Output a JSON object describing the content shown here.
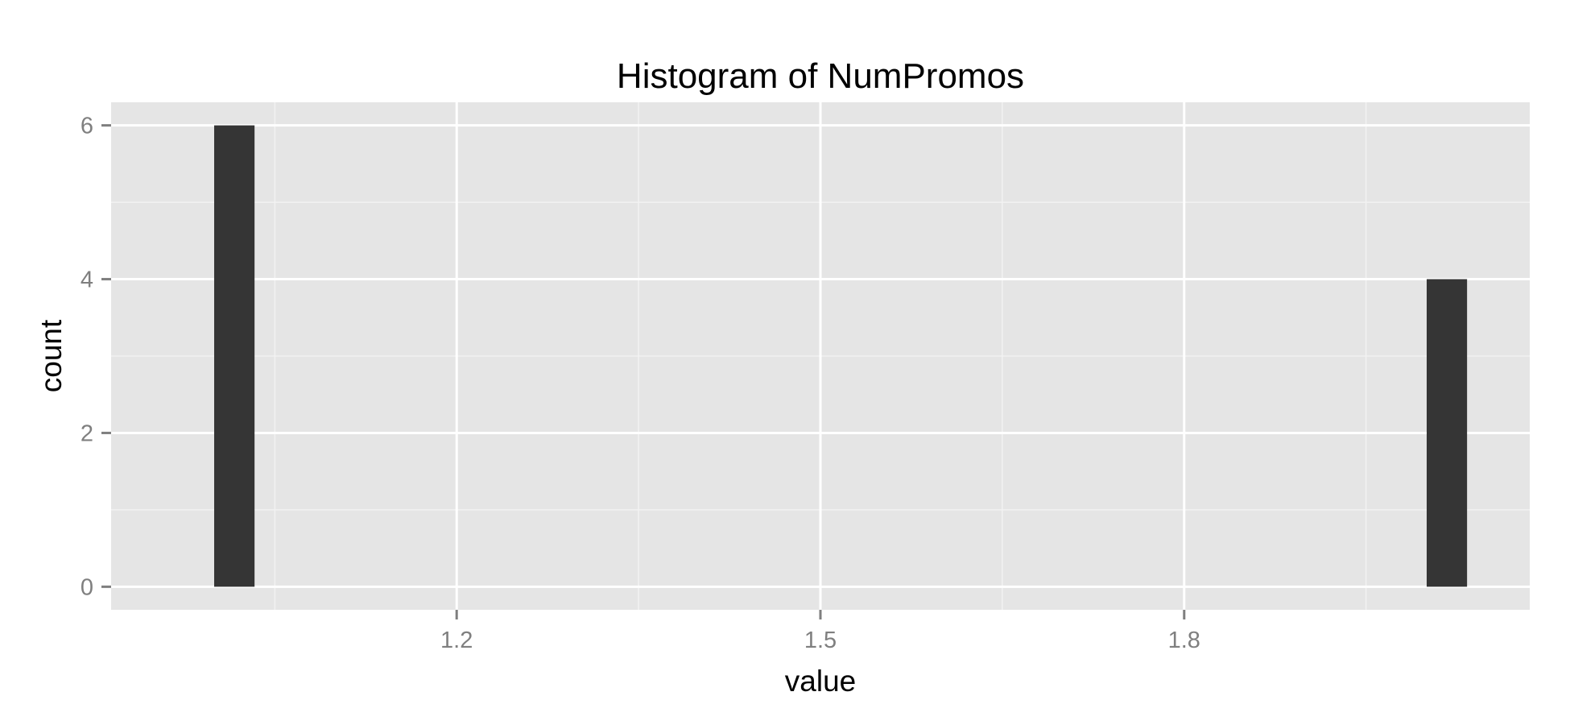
{
  "chart_data": {
    "type": "bar",
    "title": "Histogram of NumPromos",
    "xlabel": "value",
    "ylabel": "count",
    "xlim": [
      0.915,
      2.085
    ],
    "ylim": [
      -0.3,
      6.3
    ],
    "x_ticks": [
      {
        "value": 1.2,
        "label": "1.2"
      },
      {
        "value": 1.5,
        "label": "1.5"
      },
      {
        "value": 1.8,
        "label": "1.8"
      }
    ],
    "y_ticks": [
      {
        "value": 0,
        "label": "0"
      },
      {
        "value": 2,
        "label": "2"
      },
      {
        "value": 4,
        "label": "4"
      },
      {
        "value": 6,
        "label": "6"
      }
    ],
    "bars": [
      {
        "x_start": 1.0,
        "x_end": 1.0333,
        "count": 6
      },
      {
        "x_start": 2.0,
        "x_end": 2.0333,
        "count": 4
      }
    ],
    "grid": true,
    "colors": {
      "panel": "#e5e5e5",
      "grid_major": "#ffffff",
      "grid_minor": "#f2f2f2",
      "bar": "#353535",
      "tick": "#7f7f7f"
    }
  }
}
